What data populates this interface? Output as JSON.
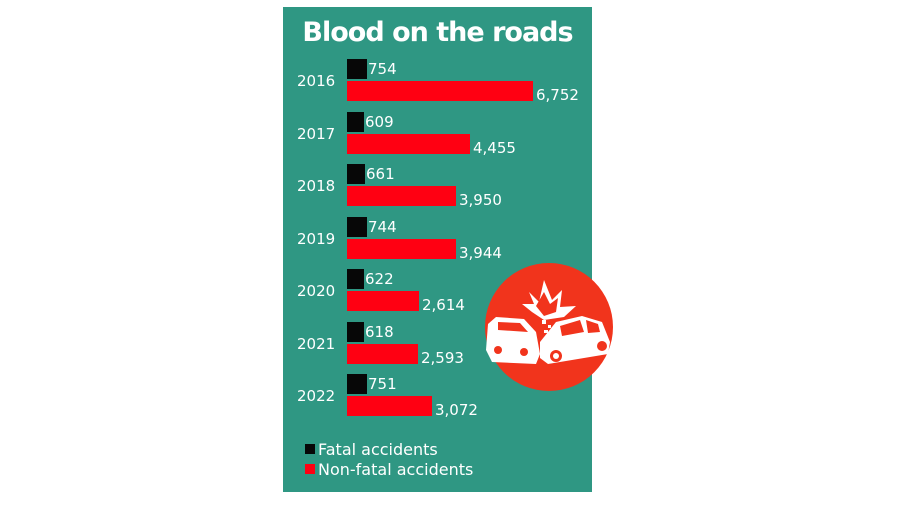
{
  "chart_data": {
    "type": "bar",
    "orientation": "horizontal",
    "title": "Blood on the roads",
    "categories": [
      "2016",
      "2017",
      "2018",
      "2019",
      "2020",
      "2021",
      "2022"
    ],
    "series": [
      {
        "name": "Fatal accidents",
        "color": "#070707",
        "values": [
          754,
          609,
          661,
          744,
          622,
          618,
          751
        ],
        "labels": [
          "754",
          "609",
          "661",
          "744",
          "622",
          "618",
          "751"
        ]
      },
      {
        "name": "Non-fatal accidents",
        "color": "#ff0012",
        "values": [
          6752,
          4455,
          3950,
          3944,
          2614,
          2593,
          3072
        ],
        "labels": [
          "6,752",
          "4,455",
          "3,950",
          "3,944",
          "2,614",
          "2,593",
          "3,072"
        ]
      }
    ],
    "xlabel": "",
    "ylabel": "",
    "grid": false,
    "legend_position": "bottom-left",
    "background": "#2f9783"
  },
  "title": "Blood on the roads",
  "legend": {
    "fatal": "Fatal accidents",
    "nonfatal": "Non-fatal accidents"
  },
  "icon": "car-crash-icon"
}
